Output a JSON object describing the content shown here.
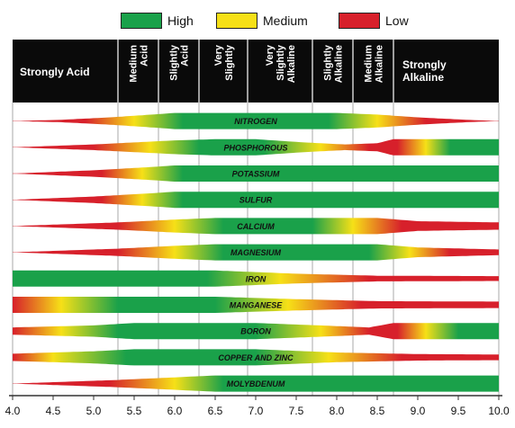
{
  "legend": [
    {
      "label": "High",
      "color": "#1aa14a"
    },
    {
      "label": "Medium",
      "color": "#f6e017"
    },
    {
      "label": "Low",
      "color": "#d7202b"
    }
  ],
  "colors": {
    "high": "#1aa14a",
    "medium": "#f6e017",
    "low": "#d7202b",
    "header_bg": "#0a0a0a",
    "grid": "#aaaaaa"
  },
  "chart_data": {
    "type": "heatmap",
    "x_axis": {
      "min": 4.0,
      "max": 10.0,
      "ticks": [
        "4.0",
        "4.5",
        "5.0",
        "5.5",
        "6.0",
        "6.5",
        "7.0",
        "7.5",
        "8.0",
        "8.5",
        "9.0",
        "9.5",
        "10.0"
      ]
    },
    "ph_zones": [
      {
        "label": "Strongly Acid",
        "from": 4.0,
        "to": 5.3
      },
      {
        "label": "Medium Acid",
        "from": 5.3,
        "to": 5.8
      },
      {
        "label": "Slightly Acid",
        "from": 5.8,
        "to": 6.3
      },
      {
        "label": "Very Slightly",
        "from": 6.3,
        "to": 6.9
      },
      {
        "label": "Very Slightly Alkaline",
        "from": 6.9,
        "to": 7.7
      },
      {
        "label": "Slightly Alkaline",
        "from": 7.7,
        "to": 8.2
      },
      {
        "label": "Medium Alkaline",
        "from": 8.2,
        "to": 8.7
      },
      {
        "label": "Strongly Alkaline",
        "from": 8.7,
        "to": 10.0
      }
    ],
    "nutrients": [
      {
        "name": "NITROGEN",
        "width_by_ph": [
          [
            4.0,
            0.0
          ],
          [
            4.6,
            0.15
          ],
          [
            5.2,
            0.45
          ],
          [
            5.8,
            0.85
          ],
          [
            6.0,
            1.0
          ],
          [
            8.0,
            1.0
          ],
          [
            8.5,
            0.8
          ],
          [
            9.0,
            0.45
          ],
          [
            9.6,
            0.15
          ],
          [
            10.0,
            0.0
          ]
        ],
        "color_by_ph": [
          [
            4.0,
            "low"
          ],
          [
            4.9,
            "low"
          ],
          [
            5.5,
            "medium"
          ],
          [
            6.1,
            "high"
          ],
          [
            7.9,
            "high"
          ],
          [
            8.5,
            "medium"
          ],
          [
            9.1,
            "low"
          ],
          [
            10.0,
            "low"
          ]
        ]
      },
      {
        "name": "PHOSPHOROUS",
        "width_by_ph": [
          [
            4.0,
            0.0
          ],
          [
            5.0,
            0.35
          ],
          [
            6.0,
            0.85
          ],
          [
            6.5,
            1.0
          ],
          [
            7.0,
            1.0
          ],
          [
            7.6,
            0.6
          ],
          [
            8.1,
            0.35
          ],
          [
            8.5,
            0.5
          ],
          [
            8.7,
            1.0
          ],
          [
            10.0,
            1.0
          ]
        ],
        "color_by_ph": [
          [
            4.0,
            "low"
          ],
          [
            5.0,
            "low"
          ],
          [
            5.7,
            "medium"
          ],
          [
            6.3,
            "high"
          ],
          [
            7.1,
            "high"
          ],
          [
            7.8,
            "medium"
          ],
          [
            8.4,
            "low"
          ],
          [
            8.75,
            "low"
          ],
          [
            9.1,
            "medium"
          ],
          [
            9.4,
            "high"
          ],
          [
            10.0,
            "high"
          ]
        ]
      },
      {
        "name": "POTASSIUM",
        "width_by_ph": [
          [
            4.0,
            0.0
          ],
          [
            5.0,
            0.4
          ],
          [
            5.7,
            0.8
          ],
          [
            6.0,
            1.0
          ],
          [
            10.0,
            1.0
          ]
        ],
        "color_by_ph": [
          [
            4.0,
            "low"
          ],
          [
            5.1,
            "low"
          ],
          [
            5.6,
            "medium"
          ],
          [
            6.1,
            "high"
          ],
          [
            10.0,
            "high"
          ]
        ]
      },
      {
        "name": "SULFUR",
        "width_by_ph": [
          [
            4.0,
            0.0
          ],
          [
            5.0,
            0.4
          ],
          [
            5.7,
            0.8
          ],
          [
            6.0,
            1.0
          ],
          [
            10.0,
            1.0
          ]
        ],
        "color_by_ph": [
          [
            4.0,
            "low"
          ],
          [
            5.1,
            "low"
          ],
          [
            5.6,
            "medium"
          ],
          [
            6.1,
            "high"
          ],
          [
            10.0,
            "high"
          ]
        ]
      },
      {
        "name": "CALCIUM",
        "width_by_ph": [
          [
            4.0,
            0.0
          ],
          [
            5.3,
            0.45
          ],
          [
            6.0,
            0.8
          ],
          [
            6.5,
            1.0
          ],
          [
            8.5,
            1.0
          ],
          [
            9.0,
            0.6
          ],
          [
            10.0,
            0.45
          ]
        ],
        "color_by_ph": [
          [
            4.0,
            "low"
          ],
          [
            5.3,
            "low"
          ],
          [
            6.0,
            "medium"
          ],
          [
            6.6,
            "high"
          ],
          [
            7.7,
            "high"
          ],
          [
            8.2,
            "medium"
          ],
          [
            8.8,
            "low"
          ],
          [
            10.0,
            "low"
          ]
        ]
      },
      {
        "name": "MAGNESIUM",
        "width_by_ph": [
          [
            4.0,
            0.0
          ],
          [
            5.3,
            0.45
          ],
          [
            6.0,
            0.8
          ],
          [
            6.5,
            1.0
          ],
          [
            8.5,
            1.0
          ],
          [
            9.0,
            0.6
          ],
          [
            10.0,
            0.35
          ]
        ],
        "color_by_ph": [
          [
            4.0,
            "low"
          ],
          [
            5.3,
            "low"
          ],
          [
            6.0,
            "medium"
          ],
          [
            6.6,
            "high"
          ],
          [
            8.4,
            "high"
          ],
          [
            8.9,
            "medium"
          ],
          [
            9.4,
            "low"
          ],
          [
            10.0,
            "low"
          ]
        ]
      },
      {
        "name": "IRON",
        "width_by_ph": [
          [
            4.0,
            1.0
          ],
          [
            6.5,
            1.0
          ],
          [
            7.5,
            0.6
          ],
          [
            8.5,
            0.35
          ],
          [
            10.0,
            0.3
          ]
        ],
        "color_by_ph": [
          [
            4.0,
            "high"
          ],
          [
            6.4,
            "high"
          ],
          [
            7.3,
            "medium"
          ],
          [
            8.4,
            "low"
          ],
          [
            10.0,
            "low"
          ]
        ]
      },
      {
        "name": "MANGANESE",
        "width_by_ph": [
          [
            4.0,
            1.0
          ],
          [
            6.5,
            1.0
          ],
          [
            7.5,
            0.7
          ],
          [
            8.5,
            0.45
          ],
          [
            10.0,
            0.4
          ]
        ],
        "color_by_ph": [
          [
            4.0,
            "low"
          ],
          [
            4.6,
            "medium"
          ],
          [
            5.3,
            "high"
          ],
          [
            6.5,
            "high"
          ],
          [
            7.4,
            "medium"
          ],
          [
            8.3,
            "low"
          ],
          [
            10.0,
            "low"
          ]
        ]
      },
      {
        "name": "BORON",
        "width_by_ph": [
          [
            4.0,
            0.45
          ],
          [
            5.0,
            0.7
          ],
          [
            5.5,
            1.0
          ],
          [
            7.0,
            1.0
          ],
          [
            7.8,
            0.7
          ],
          [
            8.4,
            0.45
          ],
          [
            8.7,
            1.0
          ],
          [
            10.0,
            1.0
          ]
        ],
        "color_by_ph": [
          [
            4.0,
            "low"
          ],
          [
            4.6,
            "medium"
          ],
          [
            5.3,
            "high"
          ],
          [
            7.0,
            "high"
          ],
          [
            7.8,
            "medium"
          ],
          [
            8.4,
            "low"
          ],
          [
            8.75,
            "low"
          ],
          [
            9.1,
            "medium"
          ],
          [
            9.5,
            "high"
          ],
          [
            10.0,
            "high"
          ]
        ]
      },
      {
        "name": "COPPER AND ZINC",
        "width_by_ph": [
          [
            4.0,
            0.45
          ],
          [
            5.0,
            0.75
          ],
          [
            5.5,
            1.0
          ],
          [
            7.0,
            1.0
          ],
          [
            8.0,
            0.6
          ],
          [
            9.0,
            0.4
          ],
          [
            10.0,
            0.35
          ]
        ],
        "color_by_ph": [
          [
            4.0,
            "low"
          ],
          [
            4.5,
            "medium"
          ],
          [
            5.4,
            "high"
          ],
          [
            7.0,
            "high"
          ],
          [
            7.9,
            "medium"
          ],
          [
            8.8,
            "low"
          ],
          [
            10.0,
            "low"
          ]
        ]
      },
      {
        "name": "MOLYBDENUM",
        "width_by_ph": [
          [
            4.0,
            0.0
          ],
          [
            5.3,
            0.45
          ],
          [
            6.5,
            1.0
          ],
          [
            10.0,
            1.0
          ]
        ],
        "color_by_ph": [
          [
            4.0,
            "low"
          ],
          [
            5.2,
            "low"
          ],
          [
            6.0,
            "medium"
          ],
          [
            6.6,
            "high"
          ],
          [
            10.0,
            "high"
          ]
        ]
      }
    ]
  }
}
